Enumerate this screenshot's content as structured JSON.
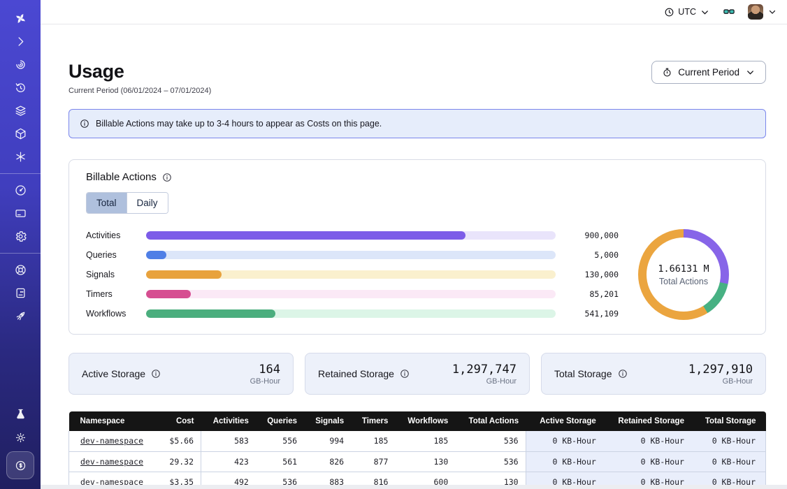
{
  "sidebar": {
    "items": [
      {
        "icon": "temporal-logo",
        "name": "logo"
      },
      {
        "icon": "chevron-right",
        "name": "expand-sidebar"
      },
      {
        "icon": "namespaces-spiral",
        "name": "namespaces"
      },
      {
        "icon": "history-clock",
        "name": "schedules"
      },
      {
        "icon": "layers",
        "name": "deployments"
      },
      {
        "icon": "cube",
        "name": "workers"
      },
      {
        "icon": "asterisk",
        "name": "nexus"
      },
      {
        "divider": true
      },
      {
        "icon": "gauge",
        "name": "usage"
      },
      {
        "icon": "credit-card",
        "name": "billing"
      },
      {
        "icon": "gear",
        "name": "settings"
      },
      {
        "divider": true
      },
      {
        "icon": "lifebuoy",
        "name": "support"
      },
      {
        "icon": "docs-book",
        "name": "docs"
      },
      {
        "icon": "rocket",
        "name": "getting-started"
      },
      {
        "spacer": true
      },
      {
        "icon": "flask",
        "name": "labs"
      },
      {
        "icon": "sun",
        "name": "theme-toggle"
      },
      {
        "icon": "dollar-coin",
        "name": "usage-costs",
        "active": true
      }
    ]
  },
  "topbar": {
    "timezone": "UTC",
    "timezone_icon": "clock-icon",
    "glasses_icon": "glasses-icon",
    "avatar": "user-avatar"
  },
  "page": {
    "title": "Usage",
    "subtitle": "Current Period (06/01/2024 – 07/01/2024)",
    "period_button_label": "Current Period",
    "period_button_icon": "stopwatch-icon"
  },
  "banner": {
    "icon": "info-icon",
    "text": "Billable Actions may take up to 3-4 hours to appear as Costs on this page."
  },
  "billable": {
    "title": "Billable Actions",
    "info_icon": "info-icon",
    "tabs": [
      {
        "label": "Total",
        "active": true
      },
      {
        "label": "Daily",
        "active": false
      }
    ]
  },
  "chart_data": [
    {
      "type": "bar",
      "orientation": "horizontal",
      "title": "Billable Actions",
      "categories": [
        "Activities",
        "Queries",
        "Signals",
        "Timers",
        "Workflows"
      ],
      "values": [
        900000,
        5000,
        130000,
        85201,
        541109
      ],
      "value_labels": [
        "900,000",
        "5,000",
        "130,000",
        "85,201",
        "541,109"
      ],
      "fill_pct": [
        78,
        5,
        18.5,
        11,
        31.5
      ],
      "colors": [
        "#7C5CE8",
        "#4F7FE6",
        "#E8A23D",
        "#D64E91",
        "#4BAE7E"
      ],
      "track_colors": [
        "#E9E4FB",
        "#DCE6F9",
        "#FAF0CE",
        "#FBE9F6",
        "#DCF5E7"
      ],
      "grid": false,
      "legend": false
    },
    {
      "type": "donut",
      "center_value": "1.66131 M",
      "center_label": "Total Actions",
      "segments": [
        {
          "label": "Activities",
          "color": "#8765E8",
          "sweep_deg": 102
        },
        {
          "label": "Workflows",
          "color": "#47B183",
          "sweep_deg": 46
        },
        {
          "label": "Signals",
          "color": "#EBA53F",
          "sweep_deg": 212
        }
      ]
    }
  ],
  "storage_cards": [
    {
      "label": "Active Storage",
      "info_icon": "info-icon",
      "value": "164",
      "unit": "GB-Hour"
    },
    {
      "label": "Retained Storage",
      "info_icon": "info-icon",
      "value": "1,297,747",
      "unit": "GB-Hour"
    },
    {
      "label": "Total Storage",
      "info_icon": "info-icon",
      "value": "1,297,910",
      "unit": "GB-Hour"
    }
  ],
  "table": {
    "columns": [
      "Namespace",
      "Cost",
      "Activities",
      "Queries",
      "Signals",
      "Timers",
      "Workflows",
      "Total Actions",
      "Active Storage",
      "Retained Storage",
      "Total Storage"
    ],
    "rows": [
      [
        "dev-namespace",
        "$5.66",
        "583",
        "556",
        "994",
        "185",
        "185",
        "536",
        "0 KB-Hour",
        "0 KB-Hour",
        "0 KB-Hour"
      ],
      [
        "dev-namespace",
        "29.32",
        "423",
        "561",
        "826",
        "877",
        "130",
        "536",
        "0 KB-Hour",
        "0 KB-Hour",
        "0 KB-Hour"
      ],
      [
        "dev-namespace",
        "$3.35",
        "492",
        "536",
        "883",
        "816",
        "600",
        "130",
        "0 KB-Hour",
        "0 KB-Hour",
        "0 KB-Hour"
      ]
    ]
  }
}
